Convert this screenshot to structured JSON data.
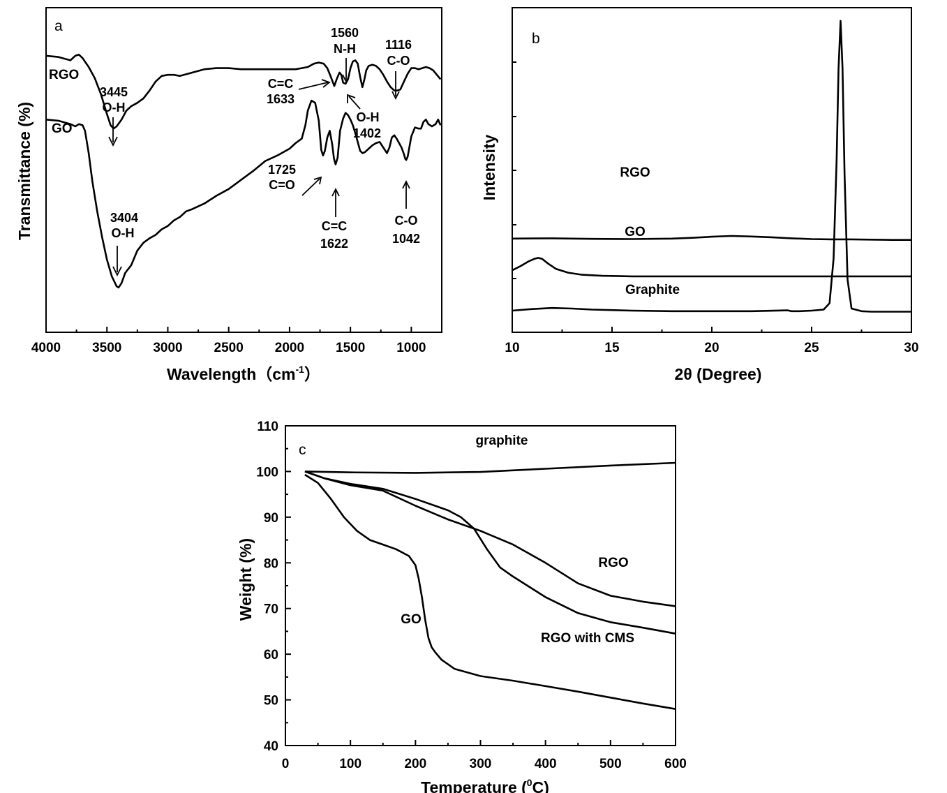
{
  "chart_data": [
    {
      "panel": "a",
      "type": "line",
      "xlabel": "Wavelength（cm",
      "xlabel_sup": "-1",
      "xlabel_end": "）",
      "ylabel": "Transmittance (%)",
      "xlim": [
        4000,
        750
      ],
      "xticks": [
        4000,
        3500,
        3000,
        2500,
        2000,
        1500,
        1000
      ],
      "series": [
        {
          "name": "RGO",
          "x": [
            4000,
            3900,
            3800,
            3760,
            3730,
            3700,
            3650,
            3600,
            3550,
            3500,
            3470,
            3445,
            3420,
            3380,
            3340,
            3300,
            3250,
            3200,
            3150,
            3100,
            3050,
            3000,
            2950,
            2900,
            2800,
            2700,
            2600,
            2500,
            2400,
            2300,
            2200,
            2100,
            2000,
            1950,
            1900,
            1850,
            1800,
            1760,
            1720,
            1690,
            1660,
            1633,
            1610,
            1590,
            1575,
            1560,
            1540,
            1520,
            1500,
            1480,
            1460,
            1440,
            1420,
            1402,
            1385,
            1370,
            1350,
            1320,
            1290,
            1260,
            1230,
            1200,
            1170,
            1140,
            1116,
            1090,
            1060,
            1030,
            1000,
            970,
            940,
            910,
            880,
            850,
            820,
            790,
            760
          ],
          "y": [
            61.7,
            61.6,
            61.3,
            61.7,
            61.8,
            61.5,
            60.7,
            59.7,
            58.3,
            56.5,
            55.5,
            55.2,
            55.4,
            56.0,
            56.8,
            57.2,
            57.5,
            57.9,
            58.6,
            59.4,
            59.9,
            60.0,
            60.0,
            59.9,
            60.2,
            60.5,
            60.6,
            60.6,
            60.5,
            60.5,
            60.5,
            60.5,
            60.5,
            60.5,
            60.6,
            60.7,
            61.0,
            61.1,
            61.0,
            60.6,
            59.8,
            59.0,
            59.7,
            60.2,
            60.0,
            59.3,
            59.2,
            59.6,
            60.6,
            61.2,
            61.3,
            61.0,
            59.8,
            58.9,
            59.6,
            60.4,
            60.8,
            60.9,
            60.8,
            60.5,
            60.0,
            59.4,
            58.9,
            58.6,
            58.6,
            58.7,
            59.4,
            60.1,
            60.6,
            60.6,
            60.5,
            60.6,
            60.7,
            60.6,
            60.4,
            60.0,
            59.6
          ]
        },
        {
          "name": "GO",
          "x": [
            4000,
            3900,
            3800,
            3760,
            3730,
            3700,
            3680,
            3650,
            3620,
            3580,
            3540,
            3500,
            3460,
            3420,
            3404,
            3380,
            3350,
            3300,
            3250,
            3200,
            3150,
            3100,
            3050,
            3000,
            2950,
            2900,
            2850,
            2800,
            2700,
            2600,
            2500,
            2400,
            2300,
            2200,
            2100,
            2000,
            1950,
            1900,
            1870,
            1850,
            1820,
            1790,
            1760,
            1740,
            1725,
            1710,
            1690,
            1670,
            1650,
            1635,
            1622,
            1605,
            1585,
            1560,
            1540,
            1520,
            1500,
            1480,
            1460,
            1440,
            1420,
            1400,
            1380,
            1350,
            1320,
            1290,
            1260,
            1230,
            1200,
            1180,
            1160,
            1140,
            1120,
            1100,
            1080,
            1060,
            1050,
            1042,
            1030,
            1000,
            970,
            940,
            920,
            900,
            880,
            860,
            830,
            800,
            780,
            760
          ],
          "y": [
            56.0,
            55.9,
            55.6,
            55.4,
            55.6,
            55.5,
            55.0,
            53.0,
            50.5,
            47.8,
            45.5,
            43.5,
            42.0,
            41.1,
            41.0,
            41.4,
            42.3,
            43.0,
            44.3,
            45.0,
            45.4,
            45.7,
            46.2,
            46.5,
            47.0,
            47.3,
            47.8,
            48.0,
            48.5,
            49.2,
            49.8,
            50.6,
            51.4,
            52.3,
            52.8,
            53.4,
            53.9,
            54.3,
            55.5,
            56.8,
            57.7,
            57.5,
            55.9,
            53.3,
            52.8,
            53.2,
            54.4,
            55.0,
            53.8,
            52.5,
            52.0,
            52.6,
            55.0,
            56.1,
            56.6,
            56.4,
            56.0,
            55.5,
            54.8,
            54.0,
            53.2,
            53.0,
            53.1,
            53.4,
            53.7,
            53.9,
            54.0,
            53.5,
            53.0,
            53.5,
            54.4,
            54.6,
            54.3,
            53.9,
            53.5,
            52.9,
            52.5,
            52.4,
            52.7,
            54.5,
            55.3,
            55.2,
            55.2,
            55.8,
            56.0,
            55.6,
            55.4,
            55.6,
            56.0,
            55.5
          ]
        }
      ],
      "series_labels": [
        "RGO",
        "GO"
      ],
      "annotations": [
        {
          "lines": [
            "3445",
            "O-H"
          ]
        },
        {
          "lines": [
            "3404",
            "O-H"
          ]
        },
        {
          "lines": [
            "1560",
            "N-H"
          ]
        },
        {
          "lines": [
            "1116",
            "C-O"
          ]
        },
        {
          "lines": [
            "C=C",
            "1633"
          ]
        },
        {
          "lines": [
            "O-H",
            "1402"
          ]
        },
        {
          "lines": [
            "1725",
            "C=O"
          ]
        },
        {
          "lines": [
            "C=C",
            "1622"
          ]
        },
        {
          "lines": [
            "C-O",
            "1042"
          ]
        }
      ]
    },
    {
      "panel": "b",
      "type": "line",
      "xlabel": "2θ (Degree)",
      "ylabel": "Intensity",
      "xlim": [
        10,
        30
      ],
      "xticks": [
        10,
        15,
        20,
        25,
        30
      ],
      "series": [
        {
          "name": "RGO",
          "x": [
            10,
            12,
            14,
            16,
            18,
            19,
            20,
            21,
            22,
            23,
            24,
            25,
            26,
            27,
            28,
            29,
            30
          ],
          "y": [
            3.55,
            3.56,
            3.54,
            3.53,
            3.55,
            3.58,
            3.62,
            3.65,
            3.63,
            3.6,
            3.56,
            3.53,
            3.52,
            3.52,
            3.51,
            3.5,
            3.5
          ]
        },
        {
          "name": "GO",
          "x": [
            10,
            10.4,
            10.8,
            11.1,
            11.3,
            11.5,
            11.8,
            12.2,
            12.8,
            13.5,
            14.5,
            16,
            18,
            20,
            22,
            24,
            26,
            28,
            30
          ],
          "y": [
            2.35,
            2.5,
            2.68,
            2.78,
            2.82,
            2.78,
            2.6,
            2.4,
            2.26,
            2.18,
            2.14,
            2.12,
            2.12,
            2.12,
            2.12,
            2.12,
            2.12,
            2.12,
            2.12
          ]
        },
        {
          "name": "Graphite",
          "x": [
            10,
            11,
            12,
            13,
            14,
            16,
            18,
            20,
            22,
            23.8,
            24,
            24.4,
            25,
            25.6,
            25.9,
            26.1,
            26.25,
            26.35,
            26.45,
            26.55,
            26.65,
            26.8,
            27,
            27.5,
            28,
            29,
            30
          ],
          "y": [
            0.82,
            0.88,
            0.92,
            0.9,
            0.86,
            0.82,
            0.8,
            0.8,
            0.8,
            0.83,
            0.8,
            0.8,
            0.82,
            0.86,
            1.1,
            2.8,
            6.5,
            10.0,
            11.8,
            10.0,
            6.0,
            2.0,
            0.9,
            0.8,
            0.78,
            0.78,
            0.78
          ]
        }
      ],
      "series_labels": [
        "RGO",
        "GO",
        "Graphite"
      ]
    },
    {
      "panel": "c",
      "type": "line",
      "xlabel": "Temperature (",
      "xlabel_sup": "0",
      "xlabel_end": "C)",
      "ylabel": "Weight (%)",
      "xlim": [
        0,
        600
      ],
      "ylim": [
        40,
        110
      ],
      "xticks": [
        0,
        100,
        200,
        300,
        400,
        500,
        600
      ],
      "yticks": [
        40,
        50,
        60,
        70,
        80,
        90,
        100,
        110
      ],
      "series": [
        {
          "name": "graphite",
          "x": [
            30,
            100,
            200,
            300,
            400,
            500,
            600
          ],
          "y": [
            100,
            99.8,
            99.7,
            99.9,
            100.6,
            101.3,
            101.9
          ]
        },
        {
          "name": "RGO",
          "x": [
            30,
            60,
            100,
            150,
            200,
            250,
            300,
            350,
            400,
            450,
            500,
            550,
            600
          ],
          "y": [
            100,
            98.5,
            97.0,
            95.8,
            92.5,
            89.5,
            87.0,
            84.0,
            80.0,
            75.5,
            72.8,
            71.5,
            70.5
          ]
        },
        {
          "name": "RGO with CMS",
          "x": [
            30,
            60,
            100,
            150,
            200,
            250,
            270,
            290,
            310,
            330,
            350,
            400,
            450,
            500,
            550,
            600
          ],
          "y": [
            100,
            98.5,
            97.3,
            96.2,
            94.0,
            91.5,
            90.0,
            87.5,
            83.0,
            79.0,
            77.0,
            72.5,
            69.0,
            67.0,
            65.8,
            64.5
          ]
        },
        {
          "name": "GO",
          "x": [
            30,
            50,
            70,
            90,
            110,
            130,
            150,
            170,
            190,
            200,
            205,
            210,
            215,
            220,
            225,
            230,
            240,
            260,
            300,
            350,
            400,
            450,
            500,
            550,
            600
          ],
          "y": [
            99.3,
            97.5,
            94.0,
            90.0,
            87.0,
            85.0,
            84.0,
            83.0,
            81.5,
            79.5,
            76.5,
            72.5,
            67.5,
            63.5,
            61.5,
            60.5,
            58.8,
            56.8,
            55.2,
            54.2,
            53.0,
            51.8,
            50.5,
            49.2,
            48.0
          ]
        }
      ],
      "series_labels": [
        "graphite",
        "RGO",
        "RGO with CMS",
        "GO"
      ]
    }
  ],
  "panel_labels": [
    "a",
    "b",
    "c"
  ]
}
